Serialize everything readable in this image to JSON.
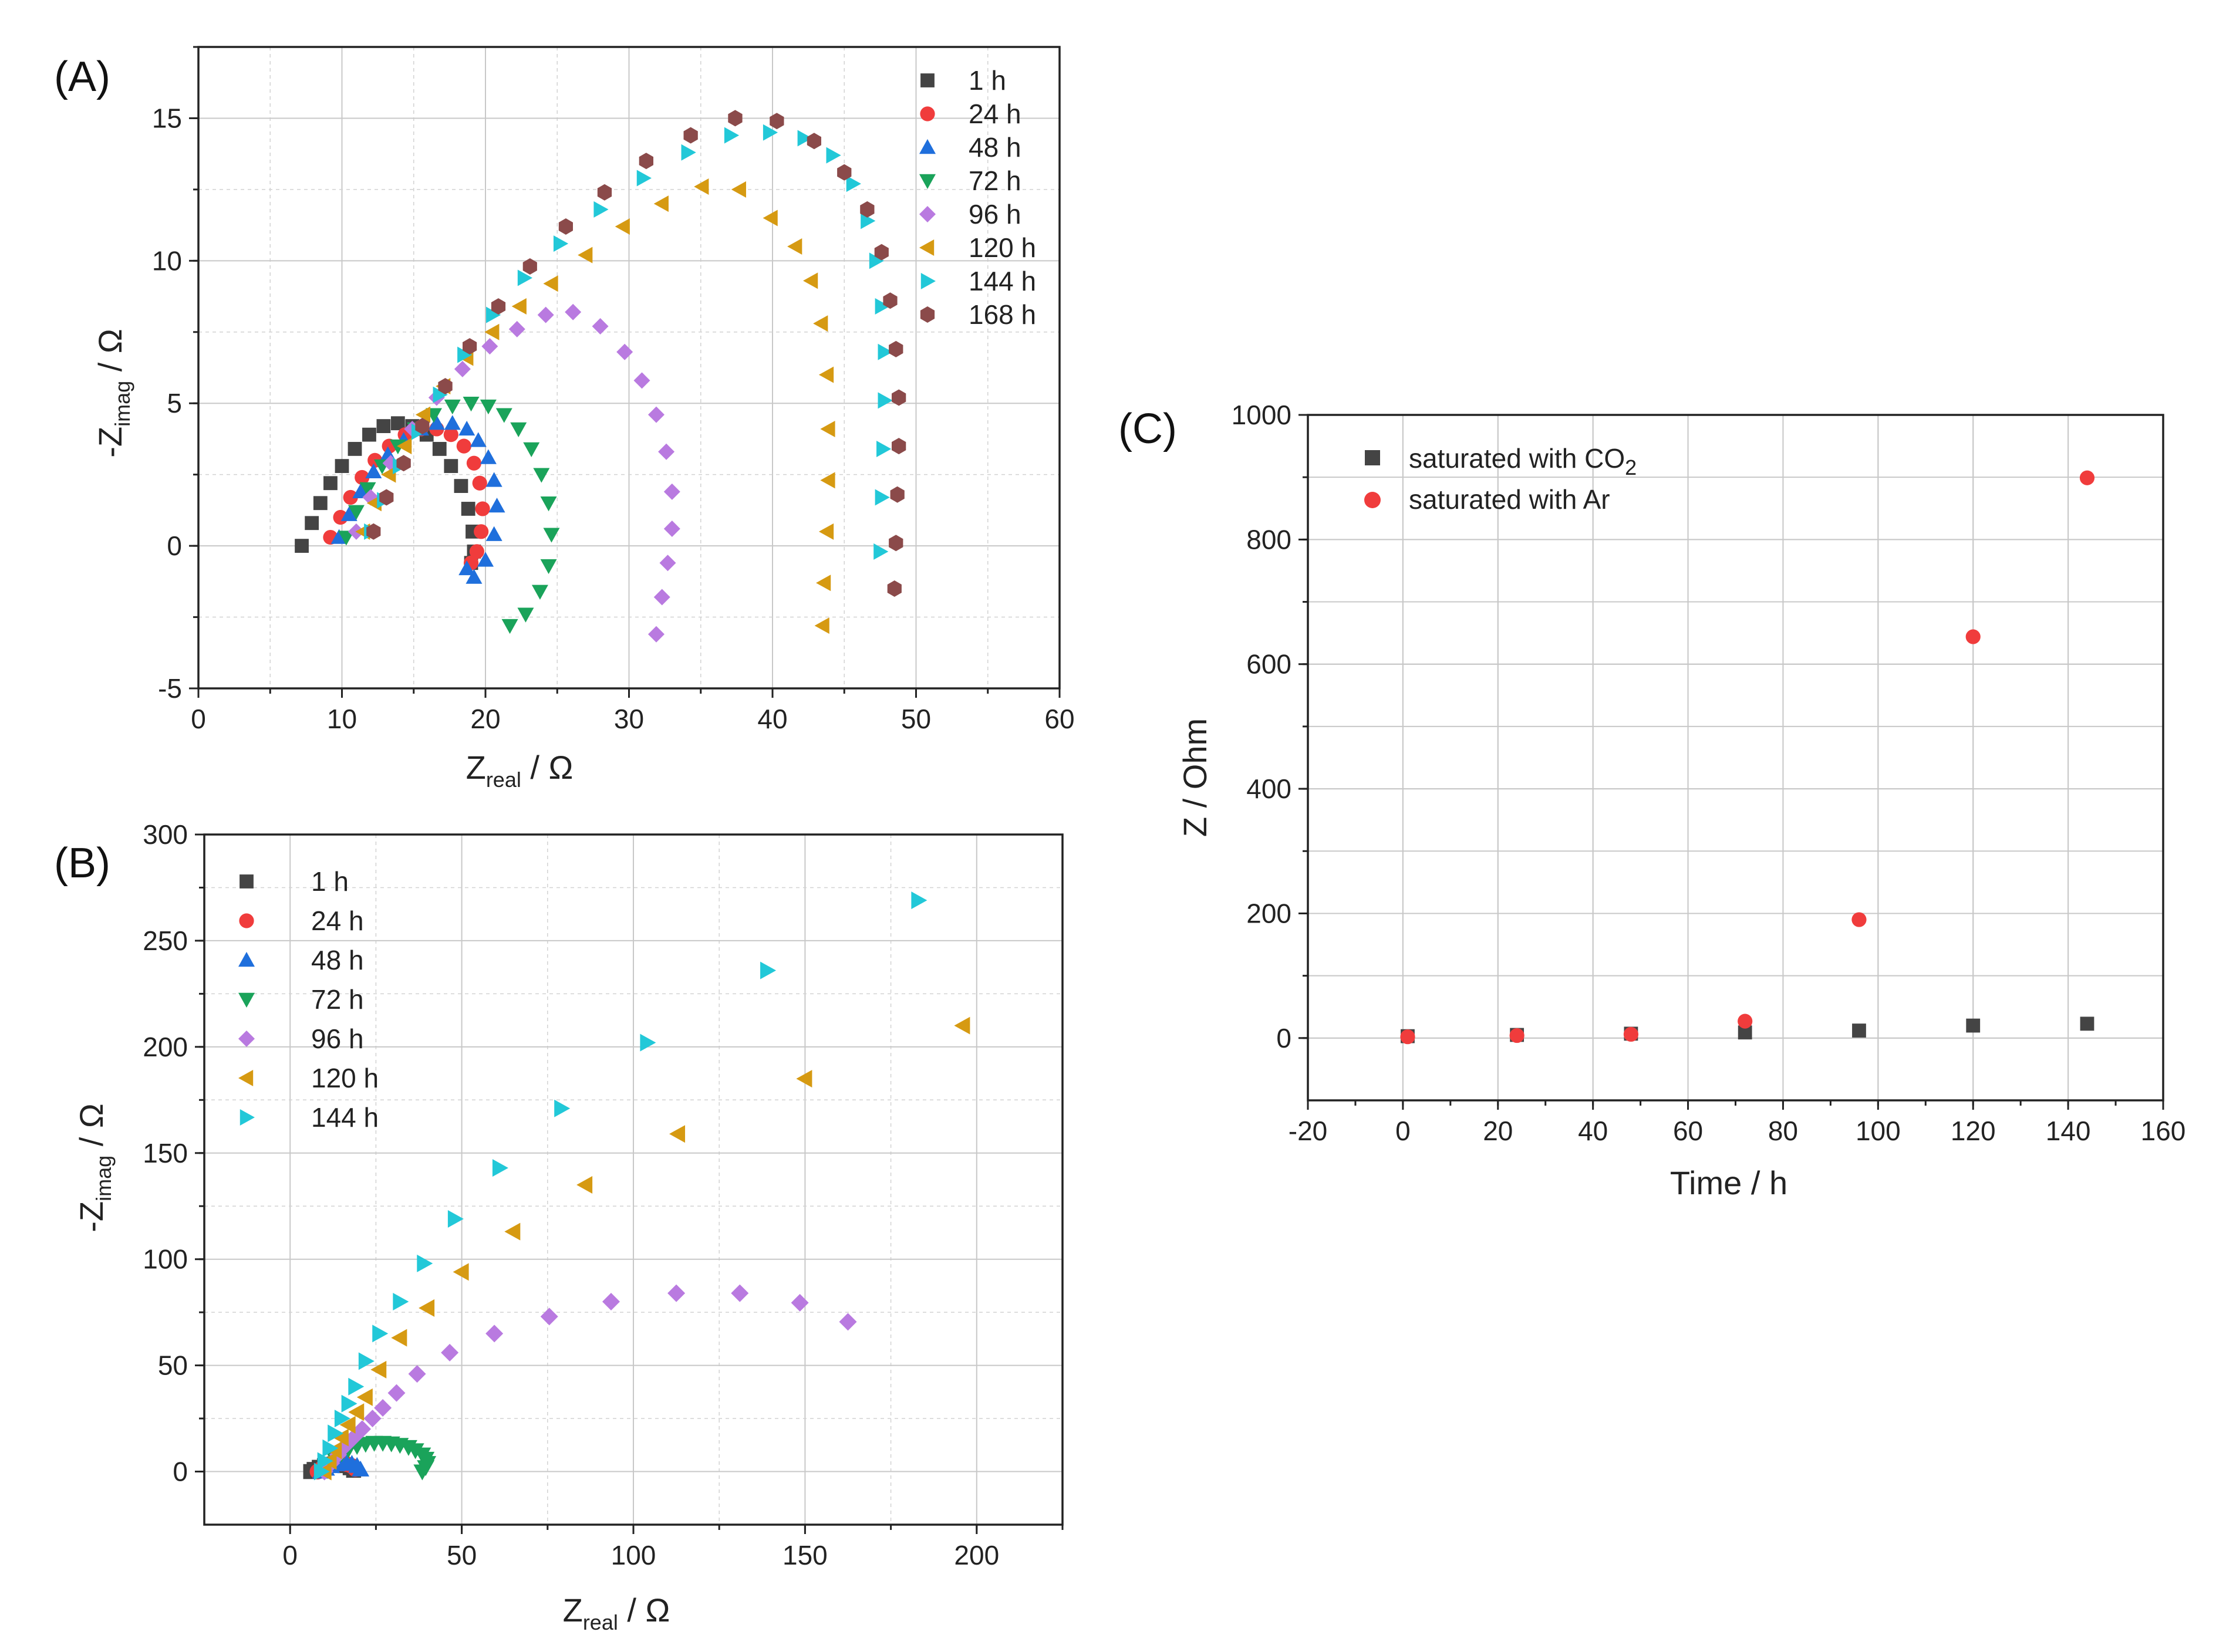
{
  "panels": {
    "A": {
      "label": "(A)"
    },
    "B": {
      "label": "(B)"
    },
    "C": {
      "label": "(C)"
    }
  },
  "axis_text": {
    "z_prefix": "Z",
    "neg_z_prefix": "-Z",
    "real_sub": "real",
    "imag_sub": "imag",
    "ohm_unit": " / Ω",
    "c_ylabel": "Z / Ohm",
    "c_xlabel": "Time / h",
    "co2_prefix": "saturated with CO",
    "co2_sub": "2",
    "ar_label": "saturated with Ar"
  },
  "colors": {
    "1 h": "#444444",
    "24 h": "#f03c3c",
    "48 h": "#1f6fdc",
    "72 h": "#1aa35a",
    "96 h": "#b97ae0",
    "120 h": "#d69a12",
    "144 h": "#22c8d8",
    "168 h": "#8b4a4a"
  },
  "chart_data": [
    {
      "id": "A",
      "type": "scatter",
      "xlabel": "Zreal / Ω",
      "ylabel": "-Zimag / Ω",
      "xlim": [
        0,
        60
      ],
      "ylim": [
        -5,
        17.5
      ],
      "xticks": [
        0,
        10,
        20,
        30,
        40,
        50,
        60
      ],
      "yticks": [
        -5,
        0,
        5,
        10,
        15
      ],
      "grid": true,
      "legend_position": "top-right",
      "series": [
        {
          "name": "1 h",
          "marker": "square",
          "x": [
            7.2,
            7.9,
            8.5,
            9.2,
            10.0,
            10.9,
            11.9,
            12.9,
            13.9,
            14.9,
            15.9,
            16.8,
            17.6,
            18.3,
            18.8,
            19.1,
            19.2,
            19.0
          ],
          "y": [
            0.0,
            0.8,
            1.5,
            2.2,
            2.8,
            3.4,
            3.9,
            4.2,
            4.3,
            4.2,
            3.9,
            3.4,
            2.8,
            2.1,
            1.3,
            0.5,
            -0.2,
            -0.6
          ]
        },
        {
          "name": "24 h",
          "marker": "circle",
          "x": [
            9.2,
            9.9,
            10.6,
            11.4,
            12.3,
            13.3,
            14.4,
            15.5,
            16.6,
            17.6,
            18.5,
            19.2,
            19.6,
            19.8,
            19.7,
            19.4,
            19.0
          ],
          "y": [
            0.3,
            1.0,
            1.7,
            2.4,
            3.0,
            3.5,
            3.9,
            4.1,
            4.1,
            3.9,
            3.5,
            2.9,
            2.2,
            1.3,
            0.5,
            -0.2,
            -0.6
          ]
        },
        {
          "name": "48 h",
          "marker": "triangle-up",
          "x": [
            9.8,
            10.5,
            11.3,
            12.2,
            13.2,
            14.3,
            15.5,
            16.6,
            17.7,
            18.7,
            19.5,
            20.2,
            20.6,
            20.8,
            20.6,
            20.0,
            19.2,
            18.7
          ],
          "y": [
            0.3,
            1.1,
            1.9,
            2.6,
            3.2,
            3.7,
            4.1,
            4.3,
            4.3,
            4.1,
            3.7,
            3.1,
            2.3,
            1.4,
            0.4,
            -0.5,
            -1.1,
            -0.8
          ]
        },
        {
          "name": "72 h",
          "marker": "triangle-down",
          "x": [
            10.3,
            11.0,
            11.8,
            12.8,
            13.9,
            15.1,
            16.4,
            17.7,
            19.0,
            20.2,
            21.3,
            22.3,
            23.2,
            23.9,
            24.4,
            24.6,
            24.4,
            23.8,
            22.8,
            21.7
          ],
          "y": [
            0.3,
            1.2,
            2.0,
            2.8,
            3.5,
            4.1,
            4.6,
            4.9,
            5.0,
            4.9,
            4.6,
            4.1,
            3.4,
            2.5,
            1.5,
            0.4,
            -0.7,
            -1.6,
            -2.4,
            -2.8
          ]
        },
        {
          "name": "96 h",
          "marker": "diamond",
          "x": [
            11.0,
            12.0,
            13.4,
            14.9,
            16.6,
            18.4,
            20.3,
            22.2,
            24.2,
            26.1,
            28.0,
            29.7,
            30.9,
            31.9,
            32.6,
            33.0,
            33.0,
            32.7,
            32.3,
            31.9
          ],
          "y": [
            0.5,
            1.7,
            2.9,
            4.1,
            5.2,
            6.2,
            7.0,
            7.6,
            8.1,
            8.2,
            7.7,
            6.8,
            5.8,
            4.6,
            3.3,
            1.9,
            0.6,
            -0.6,
            -1.8,
            -3.1
          ]
        },
        {
          "name": "120 h",
          "marker": "triangle-left",
          "x": [
            11.5,
            12.3,
            13.3,
            14.4,
            15.7,
            17.1,
            18.7,
            20.5,
            22.4,
            24.6,
            27.0,
            29.6,
            32.3,
            35.1,
            37.7,
            39.9,
            41.6,
            42.7,
            43.4,
            43.8,
            43.9,
            43.9,
            43.8,
            43.6,
            43.5
          ],
          "y": [
            0.5,
            1.5,
            2.5,
            3.5,
            4.6,
            5.6,
            6.6,
            7.5,
            8.4,
            9.2,
            10.2,
            11.2,
            12.0,
            12.6,
            12.5,
            11.5,
            10.5,
            9.3,
            7.8,
            6.0,
            4.1,
            2.3,
            0.5,
            -1.3,
            -2.8
          ]
        },
        {
          "name": "144 h",
          "marker": "triangle-right",
          "x": [
            12.0,
            12.9,
            14.0,
            15.3,
            16.8,
            18.5,
            20.5,
            22.7,
            25.2,
            28.0,
            31.0,
            34.1,
            37.1,
            39.8,
            42.2,
            44.2,
            45.6,
            46.6,
            47.2,
            47.6,
            47.8,
            47.8,
            47.7,
            47.6,
            47.5
          ],
          "y": [
            0.5,
            1.6,
            2.8,
            4.0,
            5.3,
            6.7,
            8.1,
            9.4,
            10.6,
            11.8,
            12.9,
            13.8,
            14.4,
            14.5,
            14.3,
            13.7,
            12.7,
            11.4,
            10.0,
            8.4,
            6.8,
            5.1,
            3.4,
            1.7,
            -0.2
          ]
        },
        {
          "name": "168 h",
          "marker": "hexagon",
          "x": [
            12.2,
            13.1,
            14.3,
            15.6,
            17.2,
            18.9,
            20.9,
            23.1,
            25.6,
            28.3,
            31.2,
            34.3,
            37.4,
            40.3,
            42.9,
            45.0,
            46.6,
            47.6,
            48.2,
            48.6,
            48.8,
            48.8,
            48.7,
            48.6,
            48.5
          ],
          "y": [
            0.5,
            1.7,
            2.9,
            4.2,
            5.6,
            7.0,
            8.4,
            9.8,
            11.2,
            12.4,
            13.5,
            14.4,
            15.0,
            14.9,
            14.2,
            13.1,
            11.8,
            10.3,
            8.6,
            6.9,
            5.2,
            3.5,
            1.8,
            0.1,
            -1.5
          ]
        }
      ]
    },
    {
      "id": "B",
      "type": "scatter",
      "xlabel": "Zreal / Ω",
      "ylabel": "-Zimag / Ω",
      "xlim": [
        -25,
        225
      ],
      "ylim": [
        -25,
        300
      ],
      "xticks": [
        0,
        50,
        100,
        150,
        200
      ],
      "yticks": [
        0,
        50,
        100,
        150,
        200,
        250,
        300
      ],
      "grid": true,
      "legend_position": "top-left",
      "series": [
        {
          "name": "1 h",
          "marker": "square",
          "x": [
            6.0,
            7.0,
            8.5,
            10.0,
            11.5,
            13.0,
            14.5,
            16.0,
            17.5,
            18.5
          ],
          "y": [
            0.0,
            1.0,
            2.0,
            2.8,
            3.4,
            3.6,
            3.4,
            2.8,
            1.8,
            0.6
          ]
        },
        {
          "name": "24 h",
          "marker": "circle",
          "x": [
            8.0,
            9.0,
            10.5,
            12.0,
            13.5,
            15.0,
            16.5,
            18.0,
            19.0
          ],
          "y": [
            0.0,
            1.2,
            2.2,
            3.0,
            3.6,
            3.8,
            3.5,
            2.6,
            1.2
          ]
        },
        {
          "name": "48 h",
          "marker": "triangle-up",
          "x": [
            9.0,
            10.5,
            12.0,
            13.5,
            15.0,
            16.5,
            18.0,
            19.5,
            20.5
          ],
          "y": [
            0.0,
            1.4,
            2.6,
            3.5,
            4.0,
            4.1,
            3.7,
            2.7,
            1.0
          ]
        },
        {
          "name": "72 h",
          "marker": "triangle-down",
          "x": [
            10.0,
            11.5,
            13.0,
            15.0,
            17.0,
            19.5,
            22.0,
            24.5,
            27.0,
            29.5,
            32.0,
            34.5,
            36.5,
            38.5,
            39.5,
            40.0,
            39.5,
            38.5
          ],
          "y": [
            0.0,
            3.0,
            6.0,
            8.5,
            10.5,
            12.0,
            13.0,
            13.5,
            13.5,
            13.2,
            12.5,
            11.5,
            10.0,
            8.0,
            6.0,
            4.0,
            2.0,
            0.0
          ]
        },
        {
          "name": "96 h",
          "marker": "diamond",
          "x": [
            10.0,
            12.0,
            14.0,
            16.0,
            18.5,
            21.0,
            24.0,
            27.0,
            31.0,
            37.0,
            46.5,
            59.5,
            75.5,
            93.5,
            112.5,
            131.0,
            148.5,
            162.5
          ],
          "y": [
            0.0,
            4.0,
            8.0,
            12.0,
            16.0,
            20.0,
            25.0,
            30.0,
            37.0,
            46.0,
            56.0,
            65.0,
            73.0,
            80.0,
            84.0,
            84.0,
            79.5,
            70.5
          ]
        },
        {
          "name": "120 h",
          "marker": "triangle-left",
          "x": [
            10.0,
            11.5,
            13.0,
            15.0,
            17.0,
            19.5,
            22.0,
            26.0,
            32.0,
            40.0,
            50.0,
            65.0,
            86.0,
            113.0,
            150.0,
            196.0
          ],
          "y": [
            0.0,
            5.0,
            10.0,
            16.0,
            22.0,
            28.0,
            35.0,
            48.0,
            63.0,
            77.0,
            94.0,
            113.0,
            135.0,
            159.0,
            185.0,
            210.0
          ]
        },
        {
          "name": "144 h",
          "marker": "triangle-right",
          "x": [
            9.0,
            10.0,
            11.5,
            13.0,
            15.0,
            17.0,
            19.0,
            22.0,
            26.0,
            32.0,
            39.0,
            48.0,
            61.0,
            79.0,
            104.0,
            139.0,
            183.0
          ],
          "y": [
            0.0,
            5.0,
            11.0,
            18.0,
            25.0,
            32.0,
            40.0,
            52.0,
            65.0,
            80.0,
            98.0,
            119.0,
            143.0,
            171.0,
            202.0,
            236.0,
            269.0
          ]
        }
      ]
    },
    {
      "id": "C",
      "type": "scatter",
      "xlabel": "Time / h",
      "ylabel": "Z / Ohm",
      "xlim": [
        -20,
        160
      ],
      "ylim": [
        -100,
        1000
      ],
      "xticks": [
        -20,
        0,
        20,
        40,
        60,
        80,
        100,
        120,
        140,
        160
      ],
      "yticks": [
        0,
        200,
        400,
        600,
        800,
        1000
      ],
      "grid": true,
      "legend_position": "top-left",
      "series": [
        {
          "name": "saturated with CO2",
          "marker": "square",
          "color": "#444444",
          "x": [
            1,
            24,
            48,
            72,
            96,
            120,
            144
          ],
          "y": [
            3,
            5,
            7,
            9,
            12,
            20,
            23
          ]
        },
        {
          "name": "saturated with Ar",
          "marker": "circle",
          "color": "#f03c3c",
          "x": [
            1,
            24,
            48,
            72,
            96,
            120,
            144
          ],
          "y": [
            2,
            4,
            6,
            27,
            190,
            644,
            899
          ]
        }
      ]
    }
  ],
  "legends": {
    "A": [
      "1 h",
      "24 h",
      "48 h",
      "72 h",
      "96 h",
      "120 h",
      "144 h",
      "168 h"
    ],
    "B": [
      "1 h",
      "24 h",
      "48 h",
      "72 h",
      "96 h",
      "120 h",
      "144 h"
    ]
  }
}
